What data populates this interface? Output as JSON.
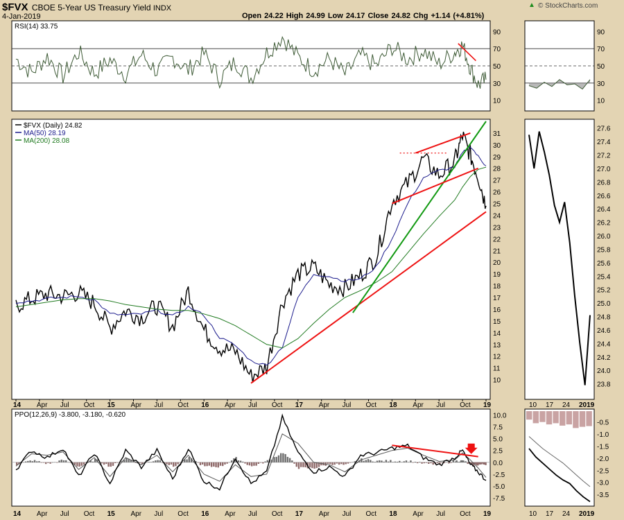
{
  "header": {
    "symbol": "$FVX",
    "name": "CBOE 5-Year US Treasury Yield",
    "exchange": "INDX",
    "date": "4-Jan-2019",
    "stats": "Open 24.22  High 24.99  Low 24.17  Close 24.82  Chg +1.14 (+4.81%)",
    "brand": "© StockCharts.com",
    "up_icon": "triangle-up-icon"
  },
  "colors": {
    "frame": "#e3d4b3",
    "panel": "#ffffff",
    "price": "#000000",
    "rsi": "#3d5a35",
    "ma50": "#1a1a8c",
    "ma200": "#1f7a1f",
    "trend_red": "#ee1111",
    "trend_green": "#119911",
    "hist_pos": "#6d6d6d",
    "hist_neg": "#8f6a6a",
    "mini_hist": "#c9a3a3",
    "brand_green": "#1c8c1c"
  },
  "chart_data": [
    {
      "type": "line",
      "panel": "rsi",
      "label": "RSI(14) 33.75",
      "ylim": [
        0,
        100
      ],
      "yticks": [
        10,
        30,
        50,
        70,
        90
      ],
      "reference_lines": [
        30,
        50,
        70
      ],
      "x": [
        "2014-01",
        "2014-03",
        "2014-05",
        "2014-07",
        "2014-09",
        "2014-11",
        "2015-01",
        "2015-03",
        "2015-05",
        "2015-07",
        "2015-09",
        "2015-11",
        "2016-01",
        "2016-03",
        "2016-05",
        "2016-07",
        "2016-09",
        "2016-11",
        "2017-01",
        "2017-03",
        "2017-05",
        "2017-07",
        "2017-09",
        "2017-11",
        "2018-01",
        "2018-03",
        "2018-05",
        "2018-07",
        "2018-09",
        "2018-10",
        "2018-11",
        "2018-12",
        "2019-01"
      ],
      "values": [
        58,
        42,
        61,
        38,
        66,
        41,
        57,
        40,
        63,
        44,
        60,
        45,
        64,
        35,
        55,
        36,
        65,
        84,
        60,
        45,
        58,
        40,
        62,
        50,
        72,
        58,
        68,
        52,
        66,
        74,
        48,
        28,
        34
      ]
    },
    {
      "type": "line",
      "panel": "price",
      "title": "$FVX (Daily) 24.82",
      "ylim": [
        8.5,
        32
      ],
      "yticks": [
        10,
        11,
        12,
        13,
        14,
        15,
        16,
        17,
        18,
        19,
        20,
        21,
        22,
        23,
        24,
        25,
        26,
        27,
        28,
        29,
        30,
        31
      ],
      "xticks": [
        "14",
        "Apr",
        "Jul",
        "Oct",
        "15",
        "Apr",
        "Jul",
        "Oct",
        "16",
        "Apr",
        "Jul",
        "Oct",
        "17",
        "Apr",
        "Jul",
        "Oct",
        "18",
        "Apr",
        "Jul",
        "Oct",
        "19"
      ],
      "x": [
        "2014-01",
        "2014-03",
        "2014-05",
        "2014-07",
        "2014-09",
        "2014-11",
        "2015-01",
        "2015-03",
        "2015-05",
        "2015-07",
        "2015-09",
        "2015-11",
        "2016-01",
        "2016-03",
        "2016-05",
        "2016-07",
        "2016-09",
        "2016-11",
        "2017-01",
        "2017-03",
        "2017-05",
        "2017-07",
        "2017-09",
        "2017-11",
        "2018-01",
        "2018-03",
        "2018-05",
        "2018-07",
        "2018-09",
        "2018-10",
        "2018-11",
        "2018-12",
        "2019-01"
      ],
      "series": [
        {
          "name": "$FVX (Daily) 24.82",
          "values": [
            16.3,
            16.9,
            17.3,
            17.1,
            17.4,
            16.5,
            14.4,
            15.9,
            15.3,
            16.3,
            14.5,
            17.6,
            14.2,
            12.7,
            12.4,
            10.3,
            11.1,
            16.6,
            19.0,
            19.6,
            18.1,
            17.8,
            18.9,
            20.5,
            25.2,
            26.7,
            28.8,
            27.4,
            28.6,
            30.8,
            29.1,
            27.3,
            24.8
          ]
        },
        {
          "name": "MA(50) 28.19",
          "values": [
            16.6,
            16.7,
            16.9,
            17.0,
            17.1,
            16.8,
            15.6,
            15.5,
            15.6,
            15.9,
            15.4,
            16.2,
            15.5,
            13.6,
            12.9,
            11.6,
            11.2,
            12.8,
            17.0,
            19.0,
            18.8,
            18.4,
            18.6,
            19.6,
            22.0,
            25.0,
            27.2,
            27.8,
            28.1,
            29.3,
            29.9,
            29.0,
            28.2
          ]
        },
        {
          "name": "MA(200) 28.08",
          "values": [
            16.2,
            16.4,
            16.6,
            16.8,
            16.9,
            16.9,
            16.7,
            16.4,
            16.2,
            16.0,
            15.9,
            15.9,
            15.6,
            15.2,
            14.6,
            13.8,
            13.0,
            12.7,
            13.5,
            14.8,
            16.0,
            17.0,
            17.6,
            18.3,
            19.2,
            20.8,
            22.4,
            23.9,
            25.3,
            26.4,
            27.3,
            27.9,
            28.1
          ]
        }
      ],
      "trendlines": [
        {
          "color": "red",
          "from": [
            "2016-07",
            9.7
          ],
          "to": [
            "2019-01",
            24.3
          ]
        },
        {
          "color": "green",
          "from": [
            "2017-08",
            15.7
          ],
          "to": [
            "2019-01",
            32.0
          ]
        },
        {
          "color": "red",
          "from": [
            "2018-01",
            25.0
          ],
          "to": [
            "2018-12",
            28.0
          ]
        },
        {
          "color": "red",
          "from": [
            "2018-04",
            29.3
          ],
          "to": [
            "2018-11",
            31.0
          ]
        },
        {
          "color": "red",
          "style": "dotted",
          "from": [
            "2018-02",
            29.3
          ],
          "to": [
            "2018-08",
            29.3
          ]
        }
      ]
    },
    {
      "type": "line",
      "panel": "ppo",
      "title": "PPO(12,26,9) -3.800, -3.180, -0.620",
      "ylim": [
        -8.8,
        10.8
      ],
      "yticks": [
        10.0,
        7.5,
        5.0,
        2.5,
        0.0,
        -2.5,
        -5.0,
        -7.5
      ],
      "xticks": [
        "14",
        "Apr",
        "Jul",
        "Oct",
        "15",
        "Apr",
        "Jul",
        "Oct",
        "16",
        "Apr",
        "Jul",
        "Oct",
        "17",
        "Apr",
        "Jul",
        "Oct",
        "18",
        "Apr",
        "Jul",
        "Oct",
        "19"
      ],
      "x": [
        "2014-01",
        "2014-03",
        "2014-05",
        "2014-07",
        "2014-09",
        "2014-11",
        "2015-01",
        "2015-03",
        "2015-05",
        "2015-07",
        "2015-09",
        "2015-11",
        "2016-01",
        "2016-03",
        "2016-05",
        "2016-07",
        "2016-09",
        "2016-11",
        "2017-01",
        "2017-03",
        "2017-05",
        "2017-07",
        "2017-09",
        "2017-11",
        "2018-01",
        "2018-03",
        "2018-05",
        "2018-07",
        "2018-09",
        "2018-10",
        "2018-11",
        "2018-12",
        "2019-01"
      ],
      "series": [
        {
          "name": "PPO",
          "values": [
            -1.5,
            2.5,
            1.0,
            3.0,
            -3.0,
            2.0,
            -4.5,
            2.5,
            -1.0,
            2.5,
            -3.5,
            3.0,
            -4.0,
            -5.5,
            1.0,
            -4.5,
            -2.0,
            9.5,
            2.0,
            -2.0,
            -1.0,
            -3.0,
            1.5,
            2.0,
            3.0,
            3.5,
            1.0,
            -0.5,
            1.0,
            2.5,
            -0.5,
            -2.0,
            -3.8
          ]
        },
        {
          "name": "Signal",
          "values": [
            -0.8,
            1.8,
            1.5,
            2.2,
            -1.5,
            1.0,
            -3.0,
            1.0,
            -0.5,
            1.5,
            -2.0,
            1.5,
            -2.5,
            -4.0,
            -0.5,
            -3.0,
            -2.5,
            6.0,
            4.0,
            0.0,
            -0.5,
            -2.0,
            0.5,
            1.5,
            2.5,
            3.0,
            1.5,
            0.2,
            0.5,
            2.0,
            0.5,
            -1.2,
            -3.18
          ]
        }
      ],
      "trendlines": [
        {
          "color": "red",
          "from": [
            "2018-01",
            3.6
          ],
          "to": [
            "2018-12",
            1.2
          ]
        }
      ],
      "marker": {
        "name": "down-arrow-icon",
        "at": [
          "2018-12",
          2.2
        ]
      }
    },
    {
      "type": "line",
      "panel": "rsi-mini",
      "ylim": [
        0,
        100
      ],
      "yticks": [
        10,
        30,
        50,
        70,
        90
      ],
      "values": [
        27,
        24,
        31,
        26,
        34,
        28,
        29,
        23,
        34
      ]
    },
    {
      "type": "line",
      "panel": "price-mini",
      "ylim": [
        23.6,
        27.7
      ],
      "yticks": [
        23.8,
        24.0,
        24.2,
        24.4,
        24.6,
        24.8,
        25.0,
        25.2,
        25.4,
        25.6,
        25.8,
        26.0,
        26.2,
        26.4,
        26.6,
        26.8,
        27.0,
        27.2,
        27.4,
        27.6
      ],
      "xticks": [
        "10",
        "17",
        "24",
        "2019"
      ],
      "values": [
        27.5,
        27.0,
        27.55,
        27.25,
        26.9,
        26.45,
        26.2,
        26.5,
        25.9,
        25.1,
        24.4,
        23.78,
        24.82
      ]
    },
    {
      "type": "line",
      "panel": "ppo-mini",
      "ylim": [
        -3.9,
        -0.05
      ],
      "yticks": [
        -0.5,
        -1.0,
        -1.5,
        -2.0,
        -2.5,
        -3.0,
        -3.5
      ],
      "xticks": [
        "10",
        "17",
        "24",
        "2019"
      ],
      "series": [
        {
          "name": "PPO",
          "values": [
            -1.6,
            -1.95,
            -2.2,
            -2.45,
            -2.7,
            -2.9,
            -3.05,
            -3.35,
            -3.6,
            -3.8
          ]
        },
        {
          "name": "Signal",
          "values": [
            -1.1,
            -1.35,
            -1.6,
            -1.8,
            -2.0,
            -2.2,
            -2.45,
            -2.7,
            -2.95,
            -3.18
          ]
        },
        {
          "name": "Histogram",
          "values": [
            -0.35,
            -0.5,
            -0.45,
            -0.55,
            -0.5,
            -0.6,
            -0.55,
            -0.7,
            -0.65,
            -0.62
          ]
        }
      ]
    }
  ]
}
